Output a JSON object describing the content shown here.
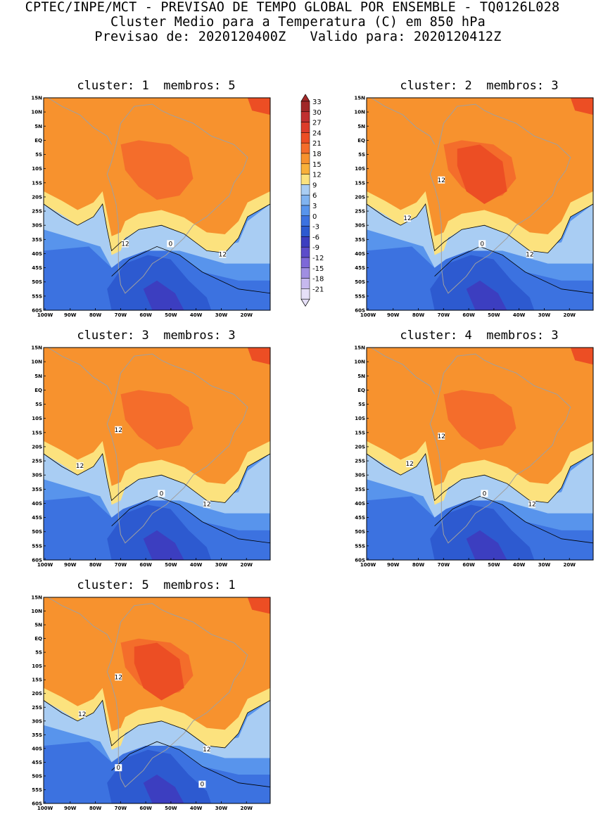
{
  "header": {
    "line1": "CPTEC/INPE/MCT - PREVISAO DE TEMPO GLOBAL POR ENSEMBLE - TQ0126L028",
    "line2": "Cluster Medio para a Temperatura (C) em 850 hPa",
    "line3": "Previsao de: 2020120400Z   Valido para: 2020120412Z"
  },
  "panels": [
    {
      "title": "cluster: 1  membros: 5",
      "contour_labels": [
        "12",
        "12",
        "0"
      ]
    },
    {
      "title": "cluster: 2  membros: 3",
      "contour_labels": [
        "12",
        "12",
        "12",
        "0"
      ]
    },
    {
      "title": "cluster: 3  membros: 3",
      "contour_labels": [
        "12",
        "12",
        "12",
        "0"
      ]
    },
    {
      "title": "cluster: 4  membros: 3",
      "contour_labels": [
        "12",
        "12",
        "12",
        "0"
      ]
    },
    {
      "title": "cluster: 5  membros: 1",
      "contour_labels": [
        "12",
        "12",
        "12",
        "0",
        "0"
      ]
    }
  ],
  "axes": {
    "lat_labels": [
      "15N",
      "10N",
      "5N",
      "EQ",
      "5S",
      "10S",
      "15S",
      "20S",
      "25S",
      "30S",
      "35S",
      "40S",
      "45S",
      "50S",
      "55S",
      "60S"
    ],
    "lon_labels": [
      "100W",
      "90W",
      "80W",
      "70W",
      "60W",
      "50W",
      "40W",
      "30W",
      "20W"
    ],
    "lat_range": [
      -60,
      15
    ],
    "lon_range": [
      -100,
      -10
    ]
  },
  "colorbar": {
    "levels": [
      "33",
      "30",
      "27",
      "24",
      "21",
      "18",
      "15",
      "12",
      "9",
      "6",
      "3",
      "0",
      "-3",
      "-6",
      "-9",
      "-12",
      "-15",
      "-18",
      "-21"
    ],
    "colors": [
      "#a02828",
      "#c03030",
      "#dc3c2a",
      "#ec4e24",
      "#f46d2b",
      "#f7922e",
      "#f9b03a",
      "#fce27e",
      "#a9cdf3",
      "#80b3f0",
      "#5894ec",
      "#3c72e0",
      "#2d5ad0",
      "#3c3ec0",
      "#5c4cca",
      "#7e68d8",
      "#a08ee2",
      "#c6b8ee",
      "#e6e0f8"
    ]
  }
}
